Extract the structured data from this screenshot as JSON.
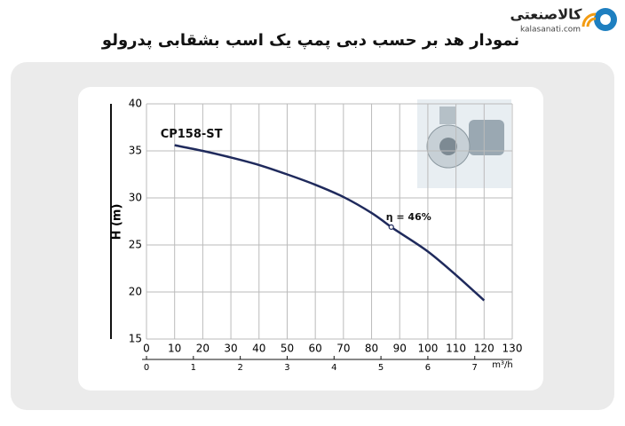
{
  "header": {
    "brand": "کالاصنعتی",
    "site": "kalasanati.com",
    "title": "نمودار هد بر حسب دبی پمپ یک اسب بشقابی پدرولو"
  },
  "chart_data": {
    "type": "line",
    "x": [
      10,
      20,
      30,
      40,
      50,
      60,
      70,
      80,
      87,
      90,
      100,
      110,
      120
    ],
    "series": [
      {
        "name": "CP158-ST",
        "color": "#1f2a5c",
        "values": [
          35.6,
          35.0,
          34.3,
          33.5,
          32.5,
          31.4,
          30.1,
          28.4,
          26.9,
          26.3,
          24.3,
          21.8,
          19.1
        ]
      }
    ],
    "xlim": [
      0,
      130
    ],
    "xticks": [
      0,
      10,
      20,
      30,
      40,
      50,
      60,
      70,
      80,
      90,
      100,
      110,
      120,
      130
    ],
    "ylim": [
      15,
      40
    ],
    "yticks": [
      15,
      20,
      25,
      30,
      35,
      40
    ],
    "ylabel": "H (m)",
    "x2lim": [
      0,
      7.8
    ],
    "x2ticks": [
      0,
      1,
      2,
      3,
      4,
      5,
      6,
      7
    ],
    "x2label": "m³/h",
    "annotations": [
      {
        "text": "η = 46%",
        "x": 87,
        "y": 26.9
      }
    ],
    "grid": true
  }
}
